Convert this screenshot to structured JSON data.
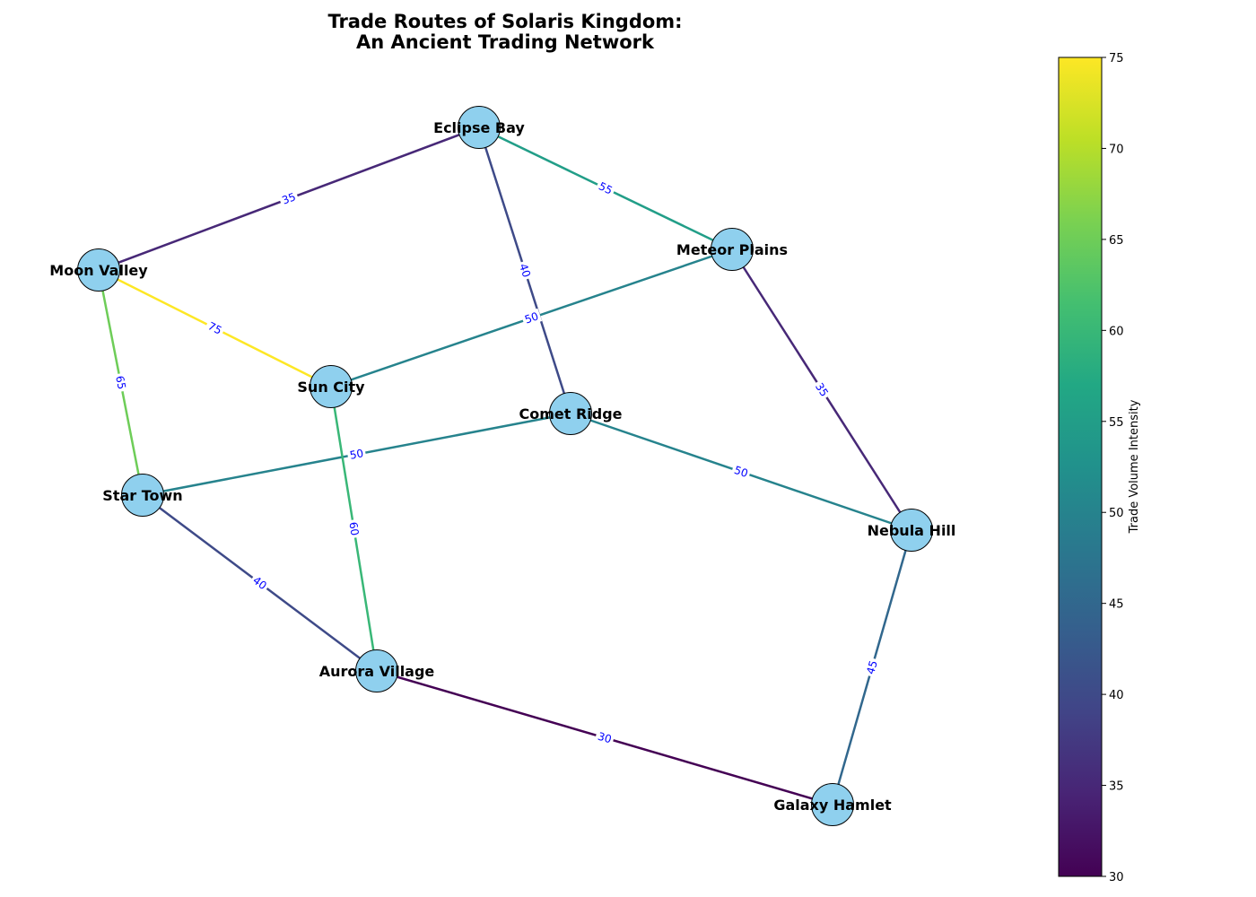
{
  "title": {
    "line1": "Trade Routes of Solaris Kingdom:",
    "line2": "An Ancient Trading Network"
  },
  "colorbar": {
    "label": "Trade Volume Intensity",
    "min": 30,
    "max": 75,
    "ticks": [
      30,
      35,
      40,
      45,
      50,
      55,
      60,
      65,
      70,
      75
    ],
    "colormap": "viridis"
  },
  "node_color": "#8fd0ee",
  "label_color": "#0000ff",
  "nodes": [
    {
      "id": "eclipse",
      "label": "Eclipse Bay"
    },
    {
      "id": "meteor",
      "label": "Meteor Plains"
    },
    {
      "id": "moon",
      "label": "Moon Valley"
    },
    {
      "id": "sun",
      "label": "Sun City"
    },
    {
      "id": "comet",
      "label": "Comet Ridge"
    },
    {
      "id": "star",
      "label": "Star Town"
    },
    {
      "id": "nebula",
      "label": "Nebula Hill"
    },
    {
      "id": "aurora",
      "label": "Aurora Village"
    },
    {
      "id": "galaxy",
      "label": "Galaxy Hamlet"
    }
  ],
  "edges": [
    {
      "source": "moon",
      "target": "eclipse",
      "value": 35
    },
    {
      "source": "eclipse",
      "target": "meteor",
      "value": 55
    },
    {
      "source": "eclipse",
      "target": "comet",
      "value": 40
    },
    {
      "source": "moon",
      "target": "sun",
      "value": 75
    },
    {
      "source": "moon",
      "target": "star",
      "value": 65
    },
    {
      "source": "sun",
      "target": "meteor",
      "value": 50
    },
    {
      "source": "meteor",
      "target": "nebula",
      "value": 35
    },
    {
      "source": "star",
      "target": "comet",
      "value": 50
    },
    {
      "source": "comet",
      "target": "nebula",
      "value": 50
    },
    {
      "source": "sun",
      "target": "aurora",
      "value": 60
    },
    {
      "source": "star",
      "target": "aurora",
      "value": 40
    },
    {
      "source": "aurora",
      "target": "galaxy",
      "value": 30
    },
    {
      "source": "nebula",
      "target": "galaxy",
      "value": 45
    }
  ]
}
